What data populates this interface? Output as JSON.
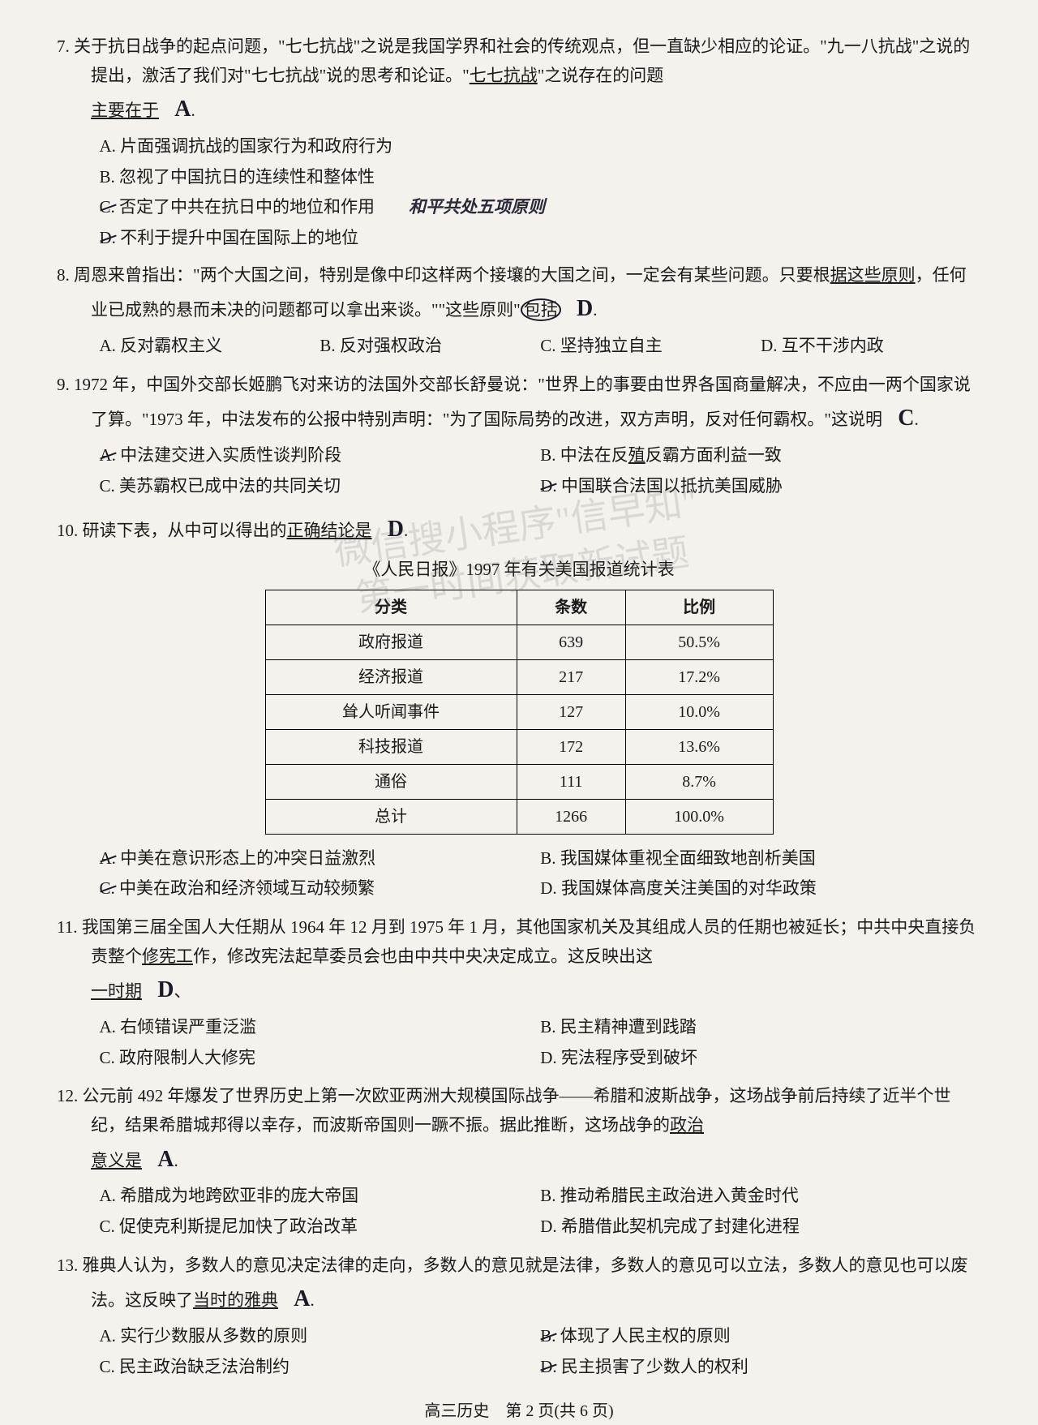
{
  "watermark": {
    "line1": "微信搜小程序\"信早知\"",
    "line2": "第一时间获取新试题"
  },
  "questions": [
    {
      "num": "7",
      "text": "关于抗日战争的起点问题，\"七七抗战\"之说是我国学界和社会的传统观点，但一直缺少相应的论证。\"九一八抗战\"之说的提出，激活了我们对\"七七抗战\"说的思考和论证。\"七七抗战\"之说存在的问题主要在于",
      "underline_part": "主要在于",
      "hw_answer": "A",
      "options": [
        "A. 片面强调抗战的国家行为和政府行为",
        "B. 忽视了中国抗日的连续性和整体性",
        "C. 否定了中共在抗日中的地位和作用",
        "D. 不利于提升中国在国际上的地位"
      ],
      "hw_note": "和平共处五项原则"
    },
    {
      "num": "8",
      "text": "周恩来曾指出：\"两个大国之间，特别是像中印这样两个接壤的大国之间，一定会有某些问题。只要根据这些原则，任何业已成熟的悬而未决的问题都可以拿出来谈。\"\"这些原则\"包括",
      "underline_part": "据这些原则",
      "hw_answer": "D",
      "options": [
        "A. 反对霸权主义",
        "B. 反对强权政治",
        "C. 坚持独立自主",
        "D. 互不干涉内政"
      ]
    },
    {
      "num": "9",
      "text": "1972 年，中国外交部长姬鹏飞对来访的法国外交部长舒曼说：\"世界上的事要由世界各国商量解决，不应由一两个国家说了算。\"1973 年，中法发布的公报中特别声明：\"为了国际局势的改进，双方声明，反对任何霸权。\"这说明",
      "hw_answer": "C",
      "options": [
        "A. 中法建交进入实质性谈判阶段",
        "B. 中法在反殖反霸方面利益一致",
        "C. 美苏霸权已成中法的共同关切",
        "D. 中国联合法国以抵抗美国威胁"
      ]
    },
    {
      "num": "10",
      "text": "研读下表，从中可以得出的正确结论是",
      "underline_part": "正确结论是",
      "hw_answer": "D",
      "table": {
        "title": "《人民日报》1997 年有关美国报道统计表",
        "columns": [
          "分类",
          "条数",
          "比例"
        ],
        "rows": [
          [
            "政府报道",
            "639",
            "50.5%"
          ],
          [
            "经济报道",
            "217",
            "17.2%"
          ],
          [
            "耸人听闻事件",
            "127",
            "10.0%"
          ],
          [
            "科技报道",
            "172",
            "13.6%"
          ],
          [
            "通俗",
            "111",
            "8.7%"
          ],
          [
            "总计",
            "1266",
            "100.0%"
          ]
        ]
      },
      "options": [
        "A. 中美在意识形态上的冲突日益激烈",
        "B. 我国媒体重视全面细致地剖析美国",
        "C. 中美在政治和经济领域互动较频繁",
        "D. 我国媒体高度关注美国的对华政策"
      ]
    },
    {
      "num": "11",
      "text": "我国第三届全国人大任期从 1964 年 12 月到 1975 年 1 月，其他国家机关及其组成人员的任期也被延长；中共中央直接负责整个修宪工作，修改宪法起草委员会也由中共中央决定成立。这反映出这一时期",
      "underline_part": "一时期",
      "hw_answer": "D",
      "options": [
        "A. 右倾错误严重泛滥",
        "B. 民主精神遭到践踏",
        "C. 政府限制人大修宪",
        "D. 宪法程序受到破坏"
      ]
    },
    {
      "num": "12",
      "text": "公元前 492 年爆发了世界历史上第一次欧亚两洲大规模国际战争——希腊和波斯战争，这场战争前后持续了近半个世纪，结果希腊城邦得以幸存，而波斯帝国则一蹶不振。据此推断，这场战争的政治意义是",
      "underline_part": "意义是",
      "hw_answer": "A",
      "options": [
        "A. 希腊成为地跨欧亚非的庞大帝国",
        "B. 推动希腊民主政治进入黄金时代",
        "C. 促使克利斯提尼加快了政治改革",
        "D. 希腊借此契机完成了封建化进程"
      ]
    },
    {
      "num": "13",
      "text": "雅典人认为，多数人的意见决定法律的走向，多数人的意见就是法律，多数人的意见可以立法，多数人的意见也可以废法。这反映了当时的雅典",
      "underline_part": "当时的雅典",
      "hw_answer": "A",
      "options": [
        "A. 实行少数服从多数的原则",
        "B. 体现了人民主权的原则",
        "C. 民主政治缺乏法治制约",
        "D. 民主损害了少数人的权利"
      ]
    }
  ],
  "footer": {
    "subject": "高三历史",
    "page": "第 2 页(共 6 页)"
  }
}
